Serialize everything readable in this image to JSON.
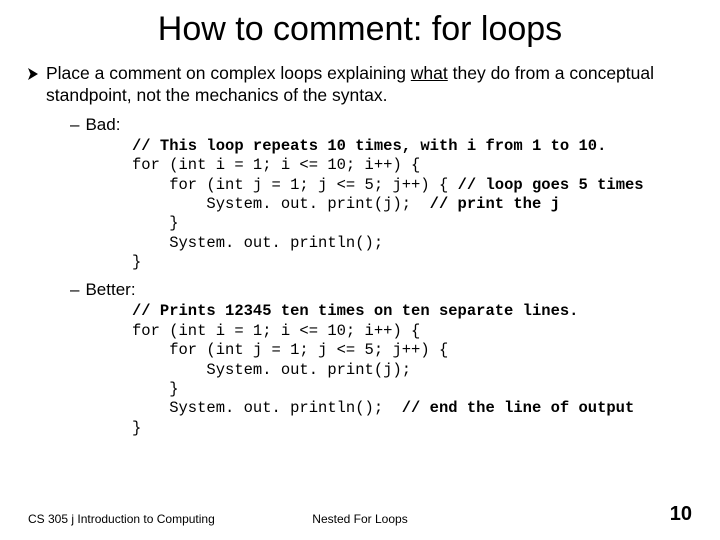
{
  "title": "How to comment: for loops",
  "bullet": {
    "prefix": "Place a comment on complex loops explaining ",
    "emphasis": "what",
    "suffix": " they do from a conceptual standpoint, not the mechanics of the syntax."
  },
  "bad": {
    "label": "Bad:",
    "code_lines": [
      {
        "text": "// This loop repeats 10 times, with i from 1 to 10.",
        "bold": true
      },
      {
        "text": "for (int i = 1; i <= 10; i++) {",
        "bold": false
      },
      {
        "text": "    for (int j = 1; j <= 5; j++) { // loop goes 5 times",
        "bold": false,
        "bold_parts": [
          "// loop goes 5 times"
        ]
      },
      {
        "text": "        System. out. print(j);  // print the j",
        "bold": false,
        "bold_parts": [
          "// print the j"
        ]
      },
      {
        "text": "    }",
        "bold": false
      },
      {
        "text": "    System. out. println();",
        "bold": false
      },
      {
        "text": "}",
        "bold": false
      }
    ]
  },
  "better": {
    "label": "Better:",
    "code_lines": [
      {
        "text": "// Prints 12345 ten times on ten separate lines.",
        "bold": true
      },
      {
        "text": "for (int i = 1; i <= 10; i++) {",
        "bold": false
      },
      {
        "text": "    for (int j = 1; j <= 5; j++) {",
        "bold": false
      },
      {
        "text": "        System. out. print(j);",
        "bold": false
      },
      {
        "text": "    }",
        "bold": false
      },
      {
        "text": "    System. out. println();  // end the line of output",
        "bold": false,
        "bold_parts": [
          "// end the line of output"
        ]
      },
      {
        "text": "}",
        "bold": false
      }
    ]
  },
  "footer": {
    "left": "CS 305 j Introduction to Computing",
    "center": "Nested For Loops",
    "page": "10"
  },
  "colors": {
    "background": "#ffffff",
    "text": "#000000"
  },
  "typography": {
    "title_fontsize": 34,
    "body_fontsize": 17.5,
    "code_fontsize": 15.5,
    "footer_fontsize": 12,
    "page_fontsize": 20
  }
}
